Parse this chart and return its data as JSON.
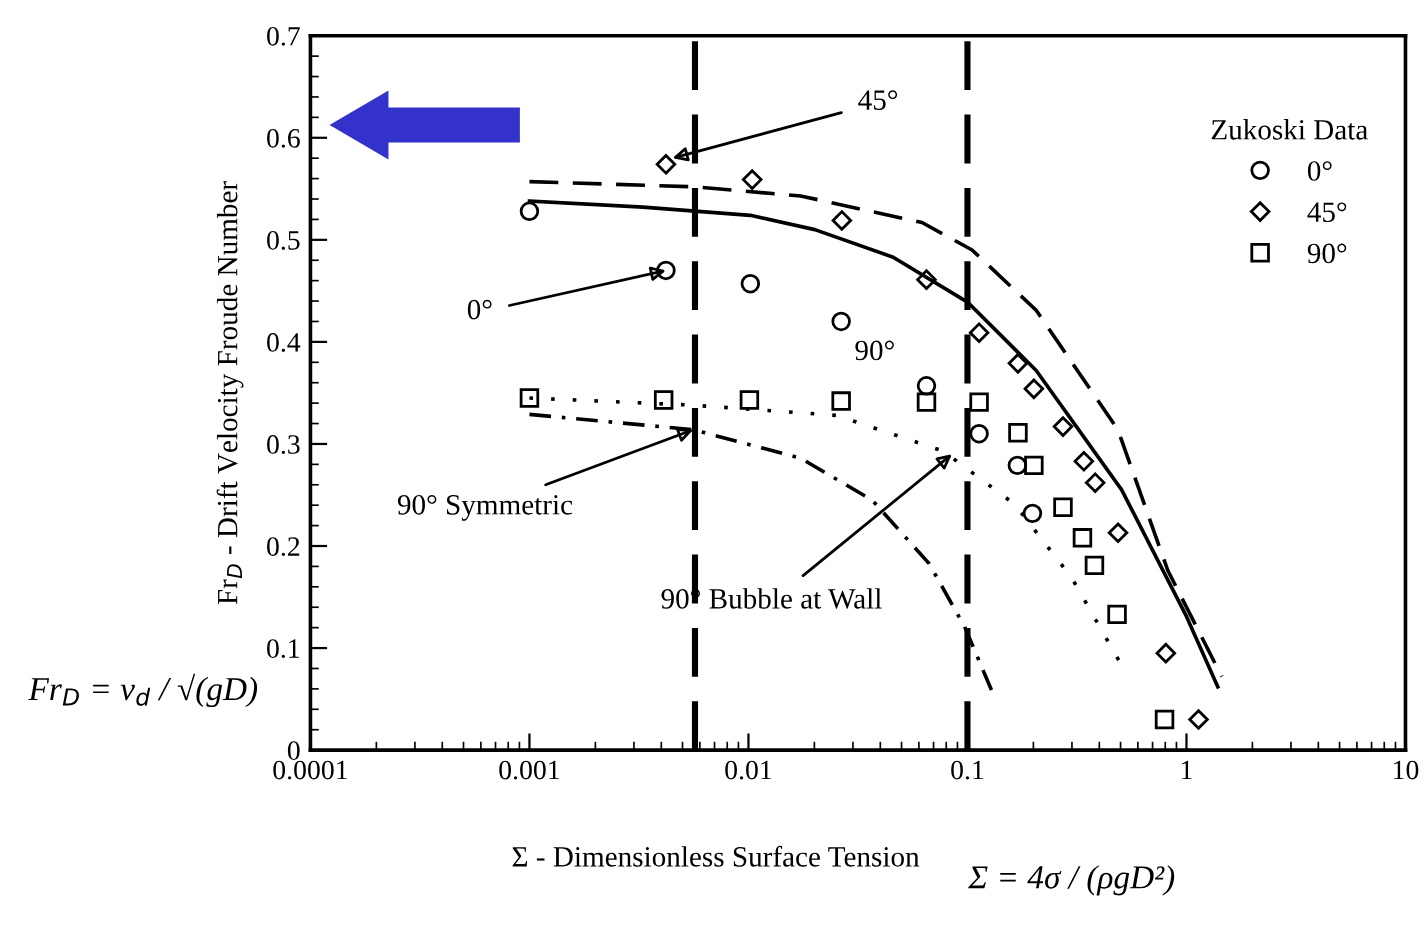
{
  "chart_data": {
    "type": "scatter",
    "xlabel": "Σ - Dimensionless Surface Tension",
    "ylabel": "Fr$_{D}$ - Drift Velocity Froude Number",
    "legend_title": "Zukoski Data",
    "legend": "top right",
    "log": "x",
    "xlim": [
      0.0001,
      10
    ],
    "xticks": [
      {
        "value": 0.0001,
        "label": "0.0001"
      },
      {
        "value": 0.001,
        "label": "0.001"
      },
      {
        "value": 0.01,
        "label": "0.01"
      },
      {
        "value": 0.1,
        "label": "0.1"
      },
      1,
      10
    ],
    "ylim": [
      0,
      0.7
    ],
    "yticks": [
      0,
      0.1,
      0.2,
      0.3,
      0.4,
      0.5,
      0.6,
      0.7
    ],
    "grid": false,
    "series": [
      {
        "name": "0°",
        "marker": "circle",
        "color": "#000000",
        "x": [
          0.001,
          0.0042,
          0.0102,
          0.0265,
          0.065,
          0.113,
          0.169,
          0.198
        ],
        "values": [
          0.528,
          0.47,
          0.457,
          0.42,
          0.357,
          0.31,
          0.279,
          0.232
        ]
      },
      {
        "name": "45°",
        "marker": "diamond",
        "color": "#000000",
        "x": [
          0.0042,
          0.0104,
          0.0267,
          0.065,
          0.113,
          0.17,
          0.201,
          0.273,
          0.34,
          0.383,
          0.487,
          0.805,
          1.135
        ],
        "values": [
          0.574,
          0.559,
          0.519,
          0.461,
          0.409,
          0.379,
          0.354,
          0.317,
          0.283,
          0.262,
          0.213,
          0.095,
          0.03
        ]
      },
      {
        "name": "90°",
        "marker": "square",
        "color": "#000000",
        "x": [
          0.001,
          0.0041,
          0.0101,
          0.0265,
          0.065,
          0.113,
          0.17,
          0.201,
          0.273,
          0.335,
          0.38,
          0.482,
          0.794
        ],
        "values": [
          0.345,
          0.343,
          0.343,
          0.342,
          0.341,
          0.341,
          0.311,
          0.279,
          0.238,
          0.208,
          0.181,
          0.133,
          0.03
        ]
      },
      {
        "type": "line",
        "line_style": "solid",
        "color": "#000000",
        "x": [
          0.001,
          0.0033,
          0.0102,
          0.0201,
          0.0458,
          0.1,
          0.206,
          0.506,
          1.0,
          1.39
        ],
        "values": [
          0.538,
          0.532,
          0.524,
          0.51,
          0.483,
          0.439,
          0.372,
          0.255,
          0.131,
          0.062
        ]
      },
      {
        "type": "line",
        "line_style": "dashed",
        "color": "#000000",
        "x": [
          0.001,
          0.0056,
          0.0173,
          0.062,
          0.105,
          0.206,
          0.486,
          0.822,
          1.45
        ],
        "values": [
          0.557,
          0.552,
          0.543,
          0.517,
          0.49,
          0.431,
          0.314,
          0.176,
          0.072
        ]
      },
      {
        "type": "line",
        "line_style": "dotted",
        "color": "#000000",
        "x": [
          0.001,
          0.0056,
          0.0252,
          0.0775,
          0.164,
          0.299,
          0.506
        ],
        "values": [
          0.345,
          0.338,
          0.328,
          0.293,
          0.241,
          0.169,
          0.083
        ]
      },
      {
        "type": "line",
        "line_style": "dashdot",
        "color": "#000000",
        "x": [
          0.001,
          0.0056,
          0.0173,
          0.0367,
          0.0667,
          0.097,
          0.131
        ],
        "values": [
          0.329,
          0.314,
          0.286,
          0.245,
          0.183,
          0.121,
          0.055
        ]
      }
    ],
    "ref_lines": [
      {
        "axis": "x",
        "value": 0.0057,
        "line_style": "dashed",
        "color": "#000000"
      },
      {
        "axis": "x",
        "value": 0.1,
        "line_style": "dashed",
        "color": "#000000"
      }
    ],
    "annotations": [
      {
        "text": "45°",
        "x": 0.0045,
        "y": 0.58
      },
      {
        "text": "0°",
        "x": 0.0042,
        "y": 0.47
      },
      "90°",
      {
        "text": "90° Symmetric",
        "x": 0.0056,
        "y": 0.314
      },
      {
        "text": "90° Bubble at Wall",
        "x": 0.085,
        "y": 0.29
      },
      "Fr$_{D}$ = v$_{d}$ / √(gD)",
      "Σ = 4σ / (ρgD²)"
    ]
  }
}
